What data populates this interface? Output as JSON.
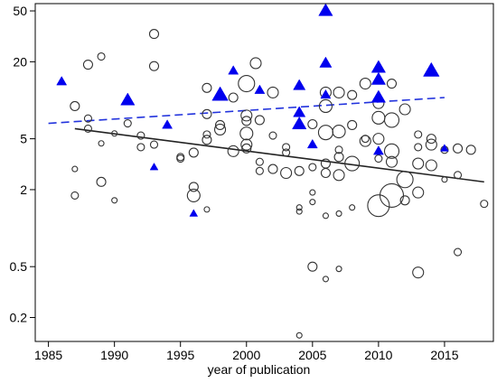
{
  "chart_data": {
    "type": "scatter",
    "title": "",
    "xlabel": "year of publication",
    "ylabel": "",
    "xlim": [
      1984,
      2018.7
    ],
    "ylim": [
      0.13,
      57
    ],
    "yscale": "log",
    "xticks": [
      1985,
      1990,
      1995,
      2000,
      2005,
      2010,
      2015
    ],
    "yticks": [
      0.2,
      0.5,
      2,
      5,
      20,
      50
    ],
    "ytick_labels": [
      "0.2",
      "0.5",
      "2",
      "5",
      "20",
      "50"
    ],
    "grid": false,
    "legend": "none",
    "colors": {
      "circles": "#333333",
      "triangles": "#0000ee",
      "solid_trend": "#222222",
      "dashed_trend": "#2233dd"
    },
    "series": [
      {
        "marker": "open-circle",
        "points": [
          {
            "x": 1987,
            "y": 1.8,
            "s": 4
          },
          {
            "x": 1987,
            "y": 2.9,
            "s": 3
          },
          {
            "x": 1987,
            "y": 9.0,
            "s": 5
          },
          {
            "x": 1988,
            "y": 19.0,
            "s": 5
          },
          {
            "x": 1988,
            "y": 6.0,
            "s": 4
          },
          {
            "x": 1988,
            "y": 7.2,
            "s": 4
          },
          {
            "x": 1989,
            "y": 22.0,
            "s": 4
          },
          {
            "x": 1989,
            "y": 2.3,
            "s": 5
          },
          {
            "x": 1989,
            "y": 4.6,
            "s": 3
          },
          {
            "x": 1990,
            "y": 1.65,
            "s": 3
          },
          {
            "x": 1990,
            "y": 5.5,
            "s": 3
          },
          {
            "x": 1991,
            "y": 6.6,
            "s": 4
          },
          {
            "x": 1992,
            "y": 4.3,
            "s": 4
          },
          {
            "x": 1992,
            "y": 5.3,
            "s": 4
          },
          {
            "x": 1993,
            "y": 33.0,
            "s": 5
          },
          {
            "x": 1993,
            "y": 18.5,
            "s": 5
          },
          {
            "x": 1993,
            "y": 4.5,
            "s": 4
          },
          {
            "x": 1995,
            "y": 3.6,
            "s": 4
          },
          {
            "x": 1995,
            "y": 3.5,
            "s": 4
          },
          {
            "x": 1996,
            "y": 2.1,
            "s": 5
          },
          {
            "x": 1996,
            "y": 1.8,
            "s": 7
          },
          {
            "x": 1996,
            "y": 3.9,
            "s": 5
          },
          {
            "x": 1997,
            "y": 1.4,
            "s": 3
          },
          {
            "x": 1997,
            "y": 4.9,
            "s": 5
          },
          {
            "x": 1997,
            "y": 5.4,
            "s": 4
          },
          {
            "x": 1997,
            "y": 7.8,
            "s": 5
          },
          {
            "x": 1997,
            "y": 12.5,
            "s": 5
          },
          {
            "x": 1998,
            "y": 5.9,
            "s": 6
          },
          {
            "x": 1998,
            "y": 6.4,
            "s": 5
          },
          {
            "x": 1999,
            "y": 4.0,
            "s": 6
          },
          {
            "x": 1999,
            "y": 10.5,
            "s": 5
          },
          {
            "x": 2000,
            "y": 13.5,
            "s": 9
          },
          {
            "x": 2000,
            "y": 7.6,
            "s": 6
          },
          {
            "x": 2000,
            "y": 5.5,
            "s": 7
          },
          {
            "x": 2000,
            "y": 4.5,
            "s": 6
          },
          {
            "x": 2000,
            "y": 4.2,
            "s": 5
          },
          {
            "x": 2000,
            "y": 6.9,
            "s": 5
          },
          {
            "x": 2000.7,
            "y": 19.5,
            "s": 6
          },
          {
            "x": 2001,
            "y": 2.8,
            "s": 4
          },
          {
            "x": 2001,
            "y": 3.3,
            "s": 4
          },
          {
            "x": 2001,
            "y": 7.0,
            "s": 5
          },
          {
            "x": 2002,
            "y": 2.9,
            "s": 5
          },
          {
            "x": 2002,
            "y": 11.5,
            "s": 6
          },
          {
            "x": 2002,
            "y": 5.3,
            "s": 4
          },
          {
            "x": 2003,
            "y": 2.7,
            "s": 6
          },
          {
            "x": 2003,
            "y": 4.3,
            "s": 4
          },
          {
            "x": 2003,
            "y": 3.9,
            "s": 4
          },
          {
            "x": 2004,
            "y": 1.45,
            "s": 3
          },
          {
            "x": 2004,
            "y": 1.35,
            "s": 3
          },
          {
            "x": 2004,
            "y": 2.8,
            "s": 5
          },
          {
            "x": 2004,
            "y": 0.145,
            "s": 3
          },
          {
            "x": 2005,
            "y": 0.5,
            "s": 5
          },
          {
            "x": 2005,
            "y": 1.6,
            "s": 3
          },
          {
            "x": 2005,
            "y": 1.9,
            "s": 3
          },
          {
            "x": 2005,
            "y": 3.0,
            "s": 4
          },
          {
            "x": 2005,
            "y": 6.5,
            "s": 5
          },
          {
            "x": 2006,
            "y": 0.4,
            "s": 3
          },
          {
            "x": 2006,
            "y": 1.25,
            "s": 3
          },
          {
            "x": 2006,
            "y": 2.7,
            "s": 5
          },
          {
            "x": 2006,
            "y": 3.2,
            "s": 5
          },
          {
            "x": 2006,
            "y": 5.6,
            "s": 8
          },
          {
            "x": 2006,
            "y": 9.0,
            "s": 7
          },
          {
            "x": 2006,
            "y": 11.5,
            "s": 6
          },
          {
            "x": 2007,
            "y": 0.48,
            "s": 3
          },
          {
            "x": 2007,
            "y": 1.3,
            "s": 3
          },
          {
            "x": 2007,
            "y": 2.6,
            "s": 6
          },
          {
            "x": 2007,
            "y": 3.6,
            "s": 5
          },
          {
            "x": 2007,
            "y": 5.7,
            "s": 7
          },
          {
            "x": 2007,
            "y": 11.5,
            "s": 6
          },
          {
            "x": 2007,
            "y": 4.1,
            "s": 4
          },
          {
            "x": 2008,
            "y": 1.45,
            "s": 3
          },
          {
            "x": 2008,
            "y": 3.2,
            "s": 8
          },
          {
            "x": 2008,
            "y": 6.4,
            "s": 5
          },
          {
            "x": 2008,
            "y": 11.0,
            "s": 5
          },
          {
            "x": 2009,
            "y": 4.8,
            "s": 6
          },
          {
            "x": 2009,
            "y": 5.0,
            "s": 4
          },
          {
            "x": 2009,
            "y": 13.5,
            "s": 6
          },
          {
            "x": 2010,
            "y": 1.5,
            "s": 12
          },
          {
            "x": 2010,
            "y": 3.5,
            "s": 4
          },
          {
            "x": 2010,
            "y": 5.0,
            "s": 6
          },
          {
            "x": 2010,
            "y": 7.3,
            "s": 7
          },
          {
            "x": 2010,
            "y": 9.5,
            "s": 6
          },
          {
            "x": 2011,
            "y": 1.8,
            "s": 13
          },
          {
            "x": 2011,
            "y": 3.3,
            "s": 6
          },
          {
            "x": 2011,
            "y": 4.0,
            "s": 8
          },
          {
            "x": 2011,
            "y": 7.0,
            "s": 8
          },
          {
            "x": 2011,
            "y": 13.5,
            "s": 5
          },
          {
            "x": 2012,
            "y": 2.4,
            "s": 9
          },
          {
            "x": 2012,
            "y": 8.5,
            "s": 6
          },
          {
            "x": 2012,
            "y": 1.65,
            "s": 5
          },
          {
            "x": 2013,
            "y": 0.45,
            "s": 6
          },
          {
            "x": 2013,
            "y": 1.9,
            "s": 6
          },
          {
            "x": 2013,
            "y": 3.2,
            "s": 6
          },
          {
            "x": 2013,
            "y": 5.4,
            "s": 4
          },
          {
            "x": 2013,
            "y": 4.3,
            "s": 4
          },
          {
            "x": 2014,
            "y": 3.1,
            "s": 6
          },
          {
            "x": 2014,
            "y": 4.5,
            "s": 6
          },
          {
            "x": 2014,
            "y": 5.0,
            "s": 5
          },
          {
            "x": 2015,
            "y": 2.4,
            "s": 3
          },
          {
            "x": 2015,
            "y": 4.1,
            "s": 4
          },
          {
            "x": 2016,
            "y": 0.65,
            "s": 4
          },
          {
            "x": 2016,
            "y": 2.6,
            "s": 4
          },
          {
            "x": 2016,
            "y": 4.2,
            "s": 5
          },
          {
            "x": 2017,
            "y": 4.1,
            "s": 5
          },
          {
            "x": 2018,
            "y": 1.55,
            "s": 4
          }
        ]
      },
      {
        "marker": "filled-triangle",
        "points": [
          {
            "x": 1986,
            "y": 14.0,
            "s": 5
          },
          {
            "x": 1991,
            "y": 10.0,
            "s": 7
          },
          {
            "x": 1993,
            "y": 3.0,
            "s": 4
          },
          {
            "x": 1994,
            "y": 6.4,
            "s": 5
          },
          {
            "x": 1996,
            "y": 1.3,
            "s": 4
          },
          {
            "x": 1998,
            "y": 11.0,
            "s": 8
          },
          {
            "x": 1999,
            "y": 17.0,
            "s": 5
          },
          {
            "x": 2001,
            "y": 12.0,
            "s": 5
          },
          {
            "x": 2004,
            "y": 13.0,
            "s": 6
          },
          {
            "x": 2004,
            "y": 8.0,
            "s": 6
          },
          {
            "x": 2004,
            "y": 6.5,
            "s": 7
          },
          {
            "x": 2005,
            "y": 4.5,
            "s": 5
          },
          {
            "x": 2006,
            "y": 50.0,
            "s": 7
          },
          {
            "x": 2006,
            "y": 19.5,
            "s": 6
          },
          {
            "x": 2006,
            "y": 11.0,
            "s": 5
          },
          {
            "x": 2010,
            "y": 18.0,
            "s": 7
          },
          {
            "x": 2010,
            "y": 14.5,
            "s": 7
          },
          {
            "x": 2010,
            "y": 10.5,
            "s": 7
          },
          {
            "x": 2010,
            "y": 4.0,
            "s": 5
          },
          {
            "x": 2014,
            "y": 17.0,
            "s": 8
          },
          {
            "x": 2015,
            "y": 4.2,
            "s": 4
          }
        ]
      }
    ],
    "trend_lines": [
      {
        "style": "solid",
        "x": [
          1987,
          2018
        ],
        "y": [
          6.0,
          2.3
        ]
      },
      {
        "style": "dashed",
        "x": [
          1985,
          2015
        ],
        "y": [
          6.6,
          10.5
        ]
      }
    ]
  }
}
